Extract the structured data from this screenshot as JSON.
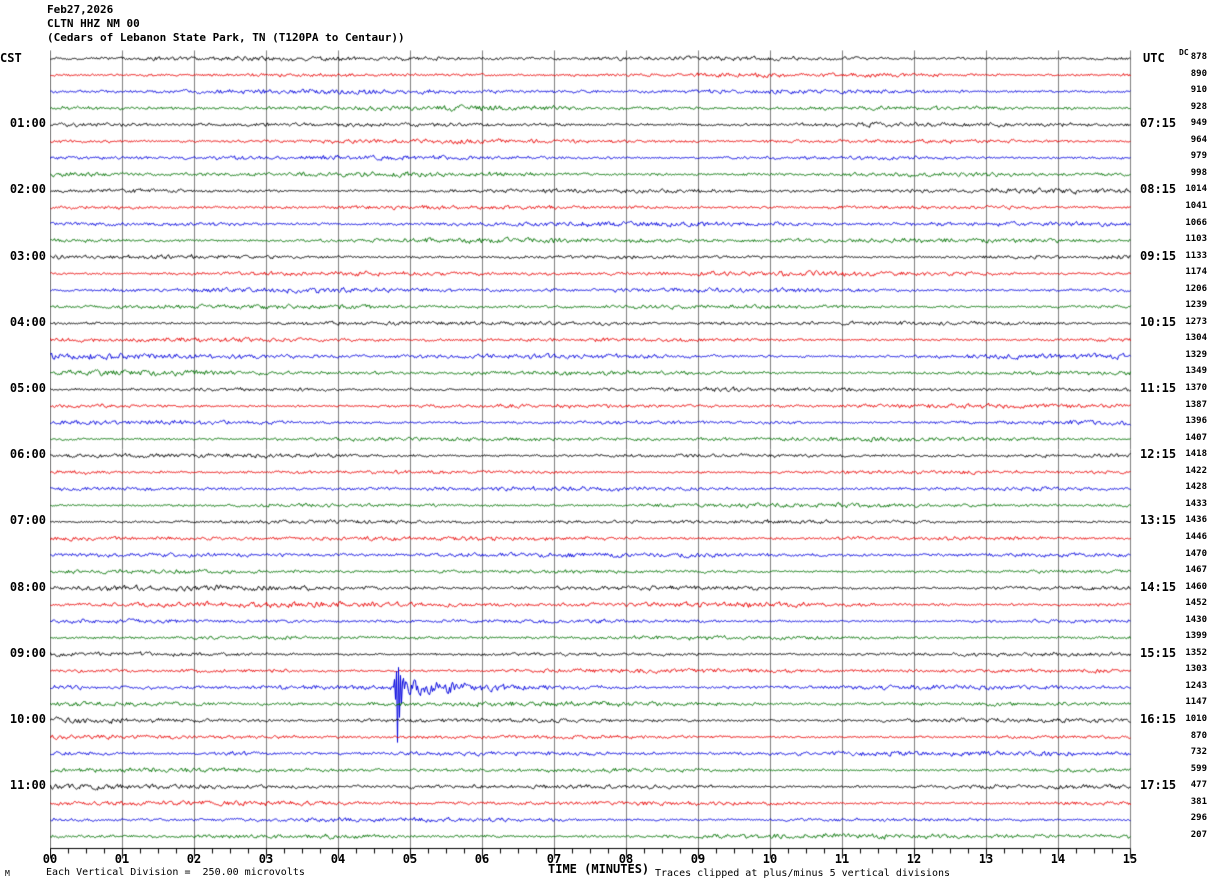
{
  "header": {
    "date": "Feb27,2026",
    "station": "CLTN HHZ NM 00",
    "location": "(Cedars of Lebanon State Park, TN (T120PA to Centaur))"
  },
  "left_axis": {
    "label": "CST",
    "hours": [
      "01:00",
      "02:00",
      "03:00",
      "04:00",
      "05:00",
      "06:00",
      "07:00",
      "08:00",
      "09:00",
      "10:00",
      "11:00"
    ]
  },
  "right_axis": {
    "label": "UTC",
    "dc_label": "DC",
    "hours": [
      "07:15",
      "08:15",
      "09:15",
      "10:15",
      "11:15",
      "12:15",
      "13:15",
      "14:15",
      "15:15",
      "16:15",
      "17:15"
    ],
    "dc_values": [
      878,
      890,
      910,
      928,
      949,
      964,
      979,
      998,
      1014,
      1041,
      1066,
      1103,
      1133,
      1174,
      1206,
      1239,
      1273,
      1304,
      1329,
      1349,
      1370,
      1387,
      1396,
      1407,
      1418,
      1422,
      1428,
      1433,
      1436,
      1446,
      1470,
      1467,
      1460,
      1452,
      1430,
      1399,
      1352,
      1303,
      1243,
      1147,
      1010,
      870,
      732,
      599,
      477,
      381,
      296,
      207
    ]
  },
  "x_axis": {
    "title": "TIME (MINUTES)",
    "ticks": [
      "00",
      "01",
      "02",
      "03",
      "04",
      "05",
      "06",
      "07",
      "08",
      "09",
      "10",
      "11",
      "12",
      "13",
      "14",
      "15"
    ]
  },
  "footer": {
    "micro_mark": "M",
    "scale_note": "Each Vertical Division =  250.00 microvolts",
    "clip_note": "Traces clipped at plus/minus 5 vertical divisions"
  },
  "colors": {
    "trace_cycle": [
      "#000000",
      "#e80000",
      "#0000dd",
      "#007200"
    ],
    "grid": "#7e7e7e",
    "axis": "#000000",
    "text": "#000000",
    "background": "#ffffff"
  },
  "chart_data": {
    "type": "line",
    "subtype": "helicorder-seismogram",
    "title": "CLTN HHZ NM 00 — Cedars of Lebanon State Park, TN (T120PA to Centaur)",
    "date": "Feb27,2026",
    "xlabel": "TIME (MINUTES)",
    "x_range_minutes": [
      0,
      15
    ],
    "minor_tick_seconds": 15,
    "rows": 48,
    "minutes_per_row": 15,
    "start_cst": "00:00",
    "start_utc": "06:15",
    "row_color_cycle_names": [
      "black",
      "red",
      "blue",
      "green"
    ],
    "left_hour_labels_cst": [
      "01:00",
      "02:00",
      "03:00",
      "04:00",
      "05:00",
      "06:00",
      "07:00",
      "08:00",
      "09:00",
      "10:00",
      "11:00"
    ],
    "right_hour_labels_utc": [
      "07:15",
      "08:15",
      "09:15",
      "10:15",
      "11:15",
      "12:15",
      "13:15",
      "14:15",
      "15:15",
      "16:15",
      "17:15"
    ],
    "dc_offset_per_row": [
      878,
      890,
      910,
      928,
      949,
      964,
      979,
      998,
      1014,
      1041,
      1066,
      1103,
      1133,
      1174,
      1206,
      1239,
      1273,
      1304,
      1329,
      1349,
      1370,
      1387,
      1396,
      1407,
      1418,
      1422,
      1428,
      1433,
      1436,
      1446,
      1470,
      1467,
      1460,
      1452,
      1430,
      1399,
      1352,
      1303,
      1243,
      1147,
      1010,
      870,
      732,
      599,
      477,
      381,
      296,
      207
    ],
    "scale": {
      "vertical_division_microvolts": 250.0,
      "clip_divisions": 5
    },
    "events": [
      {
        "row": 38,
        "cst_time": "09:30",
        "utc_time": "15:45",
        "minute": 4.8,
        "kind": "clipped-spike-with-coda",
        "description": "Large clipped spike on blue trace ~4.8 min into the 09:30 CST line, followed by elevated-amplitude coda"
      },
      {
        "row": 42,
        "cst_time": "10:30",
        "utc_time": "16:45",
        "minute": 2.6,
        "kind": "amplitude-burst",
        "description": "Moderate amplitude burst on blue trace ~2.3-2.9 min into the 10:30 CST line"
      }
    ]
  }
}
